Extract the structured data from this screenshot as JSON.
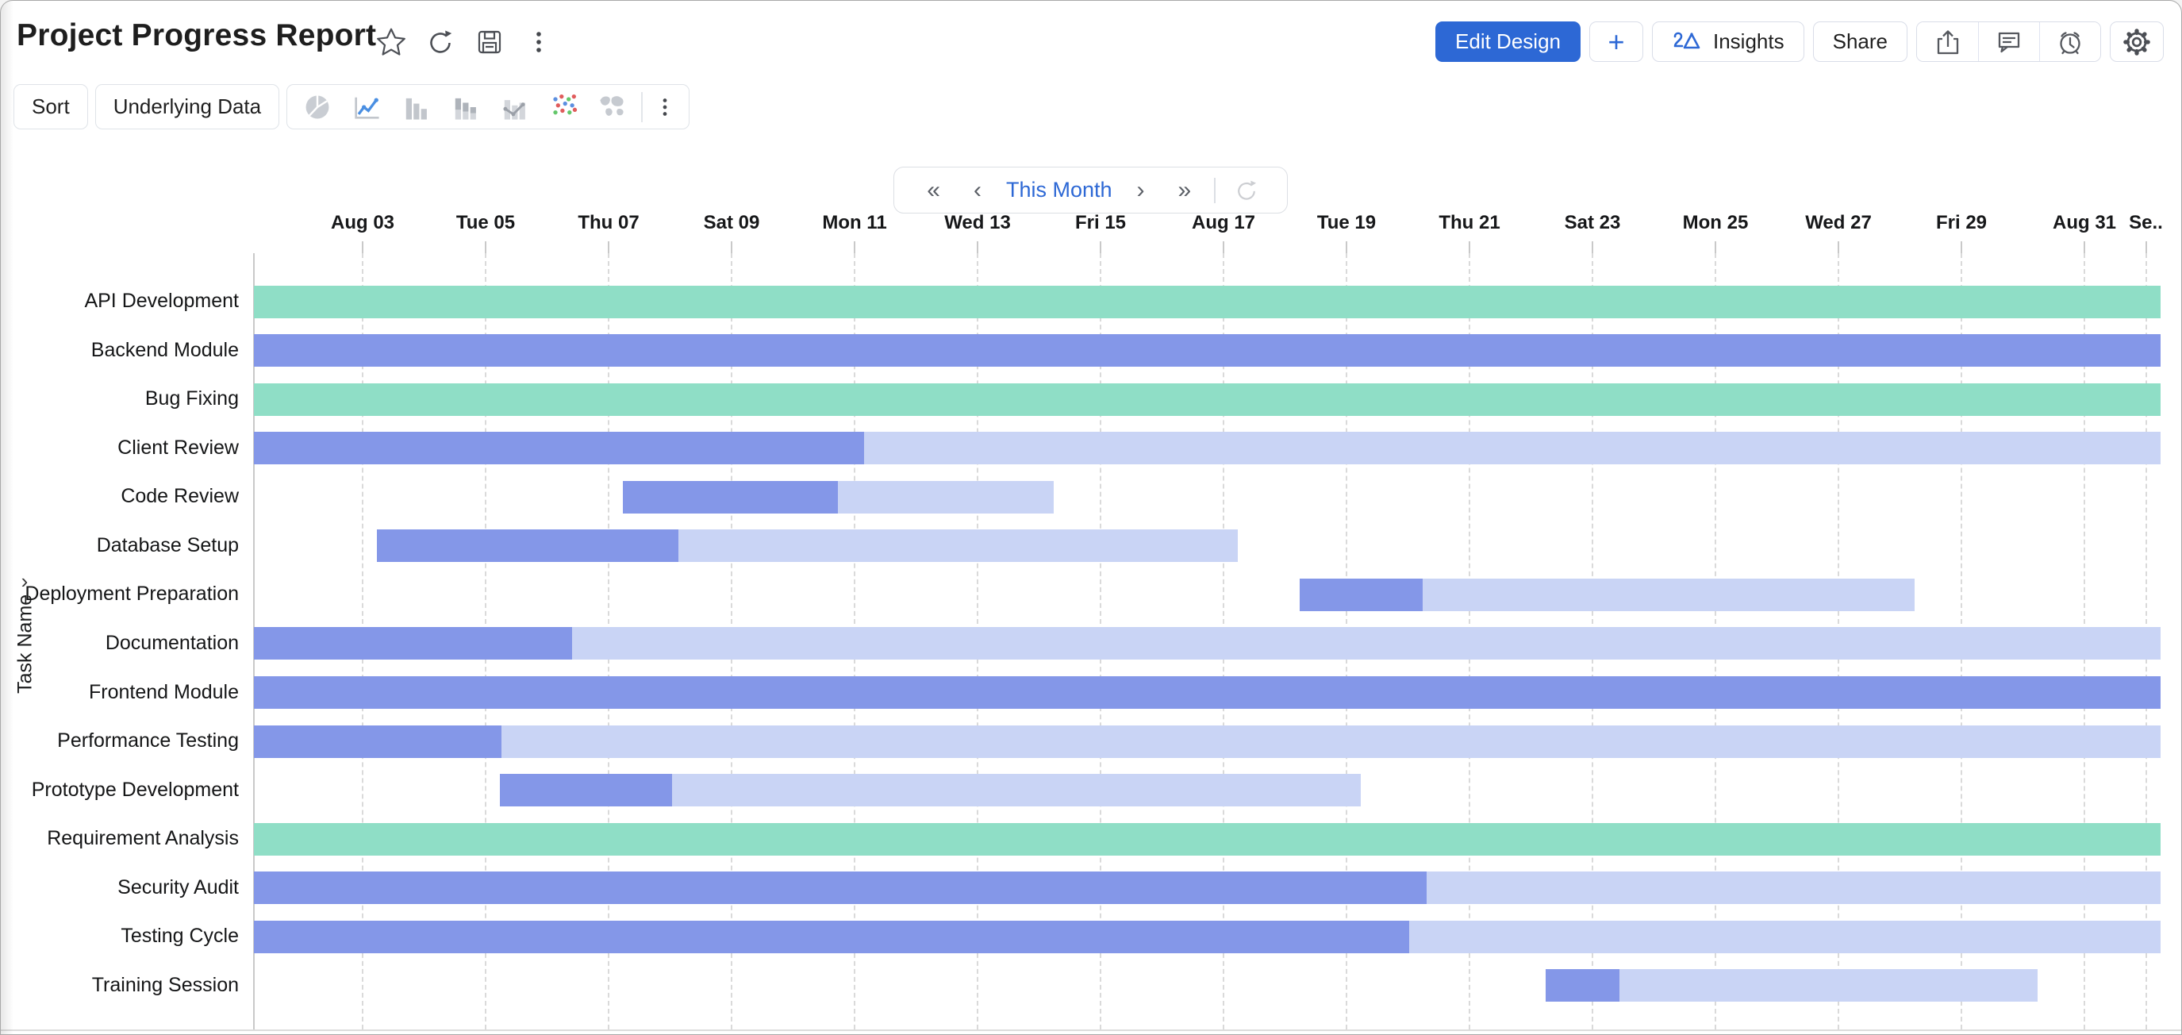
{
  "header": {
    "title": "Project Progress Report",
    "actions": {
      "edit_design": "Edit Design",
      "plus": "+",
      "insights": "Insights",
      "share": "Share"
    }
  },
  "toolbar": {
    "sort": "Sort",
    "underlying_data": "Underlying Data"
  },
  "nav": {
    "period_label": "This Month"
  },
  "chart_data": {
    "type": "gantt",
    "title": "Project Progress Report",
    "y_axis_label": "Task Name",
    "timeline": {
      "start": "Aug 01",
      "end": "Sep 01",
      "days": 31
    },
    "x_ticks": [
      {
        "label": "Aug 03",
        "day": 3
      },
      {
        "label": "Tue 05",
        "day": 5
      },
      {
        "label": "Thu 07",
        "day": 7
      },
      {
        "label": "Sat 09",
        "day": 9
      },
      {
        "label": "Mon 11",
        "day": 11
      },
      {
        "label": "Wed 13",
        "day": 13
      },
      {
        "label": "Fri 15",
        "day": 15
      },
      {
        "label": "Aug 17",
        "day": 17
      },
      {
        "label": "Tue 19",
        "day": 19
      },
      {
        "label": "Thu 21",
        "day": 21
      },
      {
        "label": "Sat 23",
        "day": 23
      },
      {
        "label": "Mon 25",
        "day": 25
      },
      {
        "label": "Wed 27",
        "day": 27
      },
      {
        "label": "Fri 29",
        "day": 29
      },
      {
        "label": "Aug 31",
        "day": 31
      },
      {
        "label": "Se..",
        "day": 32
      }
    ],
    "tasks": [
      {
        "name": "API Development",
        "start_day": 1,
        "end_day": 32,
        "progress": 1.0,
        "status": "completed"
      },
      {
        "name": "Backend Module",
        "start_day": 1,
        "end_day": 32,
        "progress": 1.0,
        "status": "in_progress"
      },
      {
        "name": "Bug Fixing",
        "start_day": 1,
        "end_day": 32,
        "progress": 1.0,
        "status": "completed"
      },
      {
        "name": "Client Review",
        "start_day": 1,
        "end_day": 32,
        "progress": 0.32,
        "status": "in_progress"
      },
      {
        "name": "Code Review",
        "start_day": 7,
        "end_day": 14,
        "progress": 0.5,
        "status": "in_progress"
      },
      {
        "name": "Database Setup",
        "start_day": 3,
        "end_day": 17,
        "progress": 0.35,
        "status": "in_progress"
      },
      {
        "name": "Deployment Preparation",
        "start_day": 18,
        "end_day": 28,
        "progress": 0.2,
        "status": "in_progress"
      },
      {
        "name": "Documentation",
        "start_day": 1,
        "end_day": 32,
        "progress": 0.167,
        "status": "in_progress"
      },
      {
        "name": "Frontend Module",
        "start_day": 1,
        "end_day": 32,
        "progress": 1.0,
        "status": "in_progress"
      },
      {
        "name": "Performance Testing",
        "start_day": 1,
        "end_day": 32,
        "progress": 0.13,
        "status": "in_progress"
      },
      {
        "name": "Prototype Development",
        "start_day": 5,
        "end_day": 19,
        "progress": 0.2,
        "status": "in_progress"
      },
      {
        "name": "Requirement Analysis",
        "start_day": 1,
        "end_day": 32,
        "progress": 1.0,
        "status": "completed"
      },
      {
        "name": "Security Audit",
        "start_day": 1,
        "end_day": 32,
        "progress": 0.615,
        "status": "in_progress"
      },
      {
        "name": "Testing Cycle",
        "start_day": 1,
        "end_day": 32,
        "progress": 0.606,
        "status": "in_progress"
      },
      {
        "name": "Training Session",
        "start_day": 22,
        "end_day": 30,
        "progress": 0.15,
        "status": "in_progress"
      }
    ],
    "colors": {
      "completed": "#8FDEC6",
      "progress_done": "#8497E8",
      "progress_remaining": "#C9D4F5",
      "accent_blue": "#2D68D5"
    },
    "grid": "dashed-vertical-every-2-days",
    "legend_position": "none"
  }
}
